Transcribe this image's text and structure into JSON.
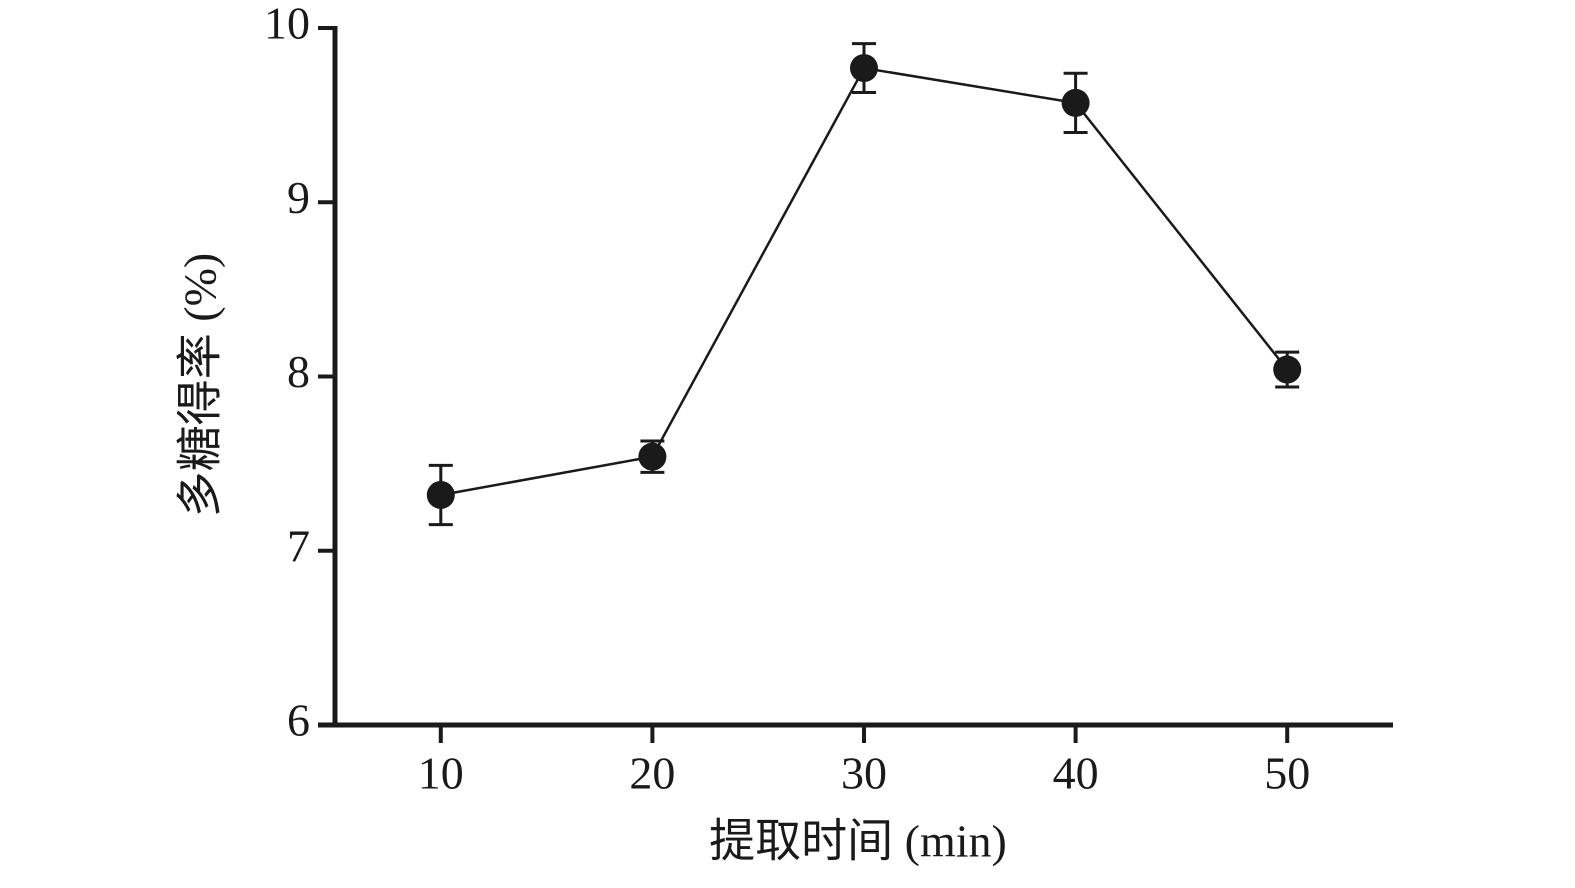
{
  "chart_data": {
    "type": "line",
    "x_label": "提取时间 (min)",
    "y_label": "多糖得率 (%)",
    "x": [
      10,
      20,
      30,
      40,
      50
    ],
    "values": [
      7.32,
      7.54,
      9.77,
      9.57,
      8.04
    ],
    "errors": [
      0.17,
      0.09,
      0.14,
      0.17,
      0.1
    ],
    "color": "#1a1a1a",
    "xlim": [
      5,
      55
    ],
    "xticks": [
      10,
      20,
      30,
      40,
      50
    ],
    "ylim": [
      6,
      10
    ],
    "yticks": [
      6,
      7,
      8,
      9,
      10
    ],
    "grid": false
  }
}
